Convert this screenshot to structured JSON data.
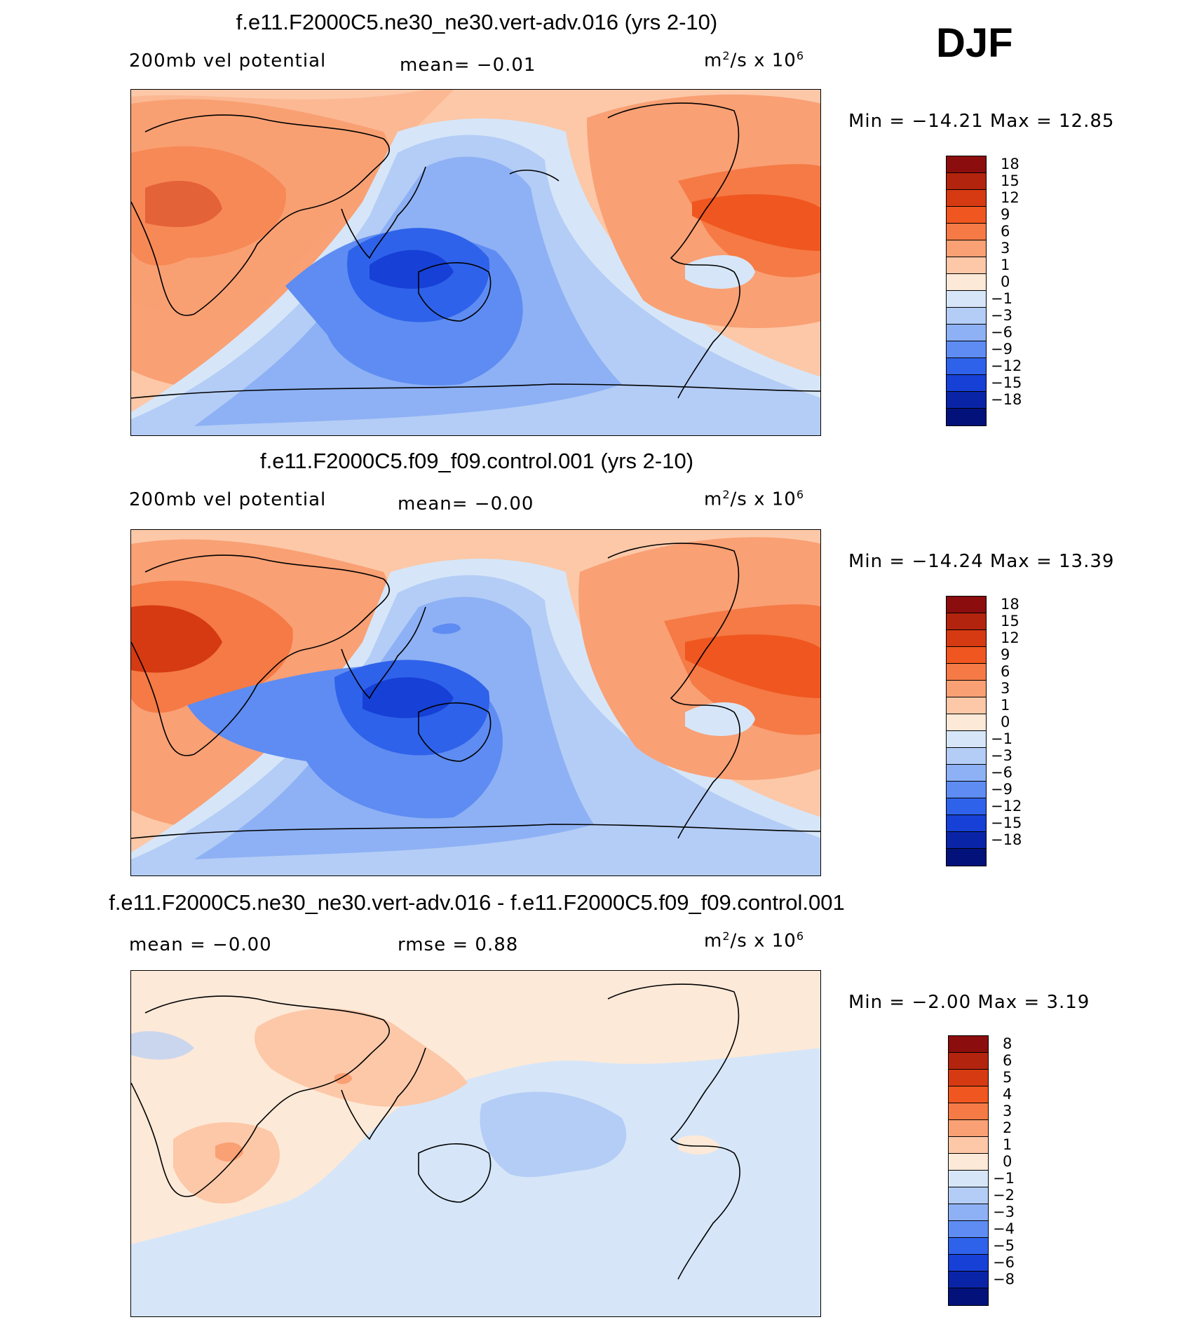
{
  "season": "DJF",
  "panels": [
    {
      "title": "f.e11.F2000C5.ne30_ne30.vert-adv.016 (yrs 2-10)",
      "left_label": "200mb vel potential",
      "mid_label": "mean=   −0.01",
      "units_base": "m",
      "units_exp1": "2",
      "units_mid": "/s x 10",
      "units_exp2": "6",
      "minmax": "Min = −14.21 Max =   12.85",
      "min": -14.21,
      "max": 12.85,
      "levels": [
        "18",
        "15",
        "12",
        "9",
        "6",
        "3",
        "1",
        "0",
        "−1",
        "−3",
        "−6",
        "−9",
        "−12",
        "−15",
        "−18"
      ],
      "colors": [
        "#8b0d0d",
        "#b3240f",
        "#d63a12",
        "#f0561f",
        "#f57a45",
        "#f9a074",
        "#fcc8a8",
        "#fde9d8",
        "#d6e6f8",
        "#b4cdf6",
        "#8eb1f5",
        "#5e8cf2",
        "#2f62ea",
        "#1640d6",
        "#0a24a8",
        "#03127a"
      ]
    },
    {
      "title": "f.e11.F2000C5.f09_f09.control.001 (yrs 2-10)",
      "left_label": "200mb vel potential",
      "mid_label": "mean=   −0.00",
      "units_base": "m",
      "units_exp1": "2",
      "units_mid": "/s x 10",
      "units_exp2": "6",
      "minmax": "Min = −14.24 Max =   13.39",
      "min": -14.24,
      "max": 13.39,
      "levels": [
        "18",
        "15",
        "12",
        "9",
        "6",
        "3",
        "1",
        "0",
        "−1",
        "−3",
        "−6",
        "−9",
        "−12",
        "−15",
        "−18"
      ]
    },
    {
      "title": "f.e11.F2000C5.ne30_ne30.vert-adv.016 - f.e11.F2000C5.f09_f09.control.001",
      "left_label": "mean =   −0.00",
      "mid_label": "rmse =    0.88",
      "units_base": "m",
      "units_exp1": "2",
      "units_mid": "/s x 10",
      "units_exp2": "6",
      "minmax": "Min =  −2.00 Max =    3.19",
      "min": -2.0,
      "max": 3.19,
      "levels": [
        "8",
        "6",
        "5",
        "4",
        "3",
        "2",
        "1",
        "0",
        "−1",
        "−2",
        "−3",
        "−4",
        "−5",
        "−6",
        "−8"
      ]
    }
  ],
  "chart_data": [
    {
      "type": "heatmap",
      "title": "f.e11.F2000C5.ne30_ne30.vert-adv.016 (yrs 2-10)",
      "variable": "200mb vel potential",
      "units": "m^2/s x 10^6",
      "mean": -0.01,
      "min": -14.21,
      "max": 12.85,
      "contour_levels": [
        -18,
        -15,
        -12,
        -9,
        -6,
        -3,
        -1,
        0,
        1,
        3,
        6,
        9,
        12,
        15,
        18
      ]
    },
    {
      "type": "heatmap",
      "title": "f.e11.F2000C5.f09_f09.control.001 (yrs 2-10)",
      "variable": "200mb vel potential",
      "units": "m^2/s x 10^6",
      "mean": -0.0,
      "min": -14.24,
      "max": 13.39,
      "contour_levels": [
        -18,
        -15,
        -12,
        -9,
        -6,
        -3,
        -1,
        0,
        1,
        3,
        6,
        9,
        12,
        15,
        18
      ]
    },
    {
      "type": "heatmap",
      "title": "f.e11.F2000C5.ne30_ne30.vert-adv.016 - f.e11.F2000C5.f09_f09.control.001",
      "units": "m^2/s x 10^6",
      "mean": -0.0,
      "rmse": 0.88,
      "min": -2.0,
      "max": 3.19,
      "contour_levels": [
        -8,
        -6,
        -5,
        -4,
        -3,
        -2,
        -1,
        0,
        1,
        2,
        3,
        4,
        5,
        6,
        8
      ]
    }
  ]
}
